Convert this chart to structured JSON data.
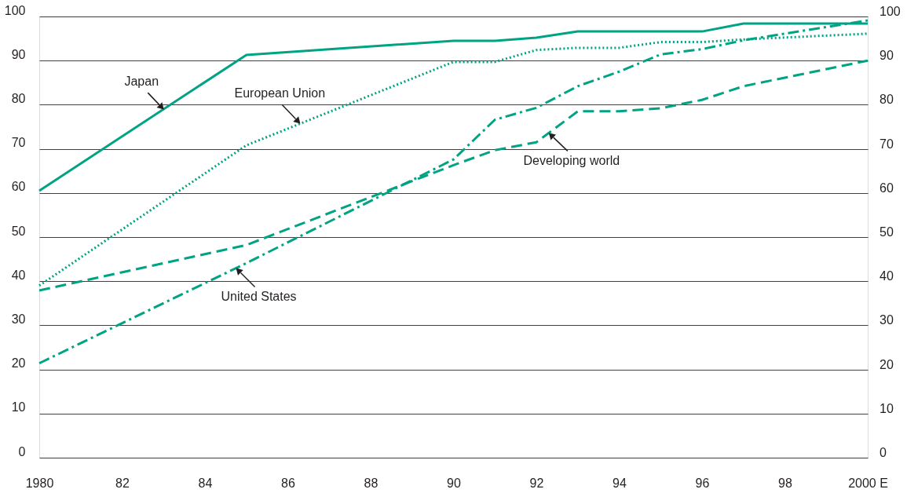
{
  "chart_data": {
    "type": "line",
    "x": [
      1980,
      1985,
      1990,
      1991,
      1992,
      1993,
      1994,
      1995,
      1996,
      1997,
      2000
    ],
    "series": [
      {
        "name": "Japan",
        "color": "#00a383",
        "line_style": "solid",
        "values": [
          60.5,
          91.3,
          94.5,
          94.5,
          95.2,
          96.6,
          96.6,
          96.6,
          96.6,
          98.4,
          98.4
        ]
      },
      {
        "name": "European Union",
        "color": "#00a383",
        "line_style": "dotted",
        "values": [
          39,
          70.8,
          89.7,
          89.7,
          92.4,
          92.9,
          92.9,
          94.2,
          94.2,
          94.8,
          96.1
        ]
      },
      {
        "name": "United States",
        "color": "#00a383",
        "line_style": "dashdot",
        "values": [
          21.4,
          44.1,
          67.6,
          76.6,
          79.3,
          84.2,
          87.5,
          91.4,
          92.6,
          94.6,
          99.1
        ]
      },
      {
        "name": "Developing world",
        "color": "#00a383",
        "line_style": "dashed",
        "values": [
          37.9,
          48.2,
          66.3,
          69.7,
          71.5,
          78.5,
          78.5,
          79.2,
          81.1,
          84.2,
          90
        ]
      }
    ],
    "xlim": [
      1980,
      2000
    ],
    "xticks": [
      {
        "value": 1980,
        "label": "1980"
      },
      {
        "value": 1982,
        "label": "82"
      },
      {
        "value": 1984,
        "label": "84"
      },
      {
        "value": 1986,
        "label": "86"
      },
      {
        "value": 1988,
        "label": "88"
      },
      {
        "value": 1990,
        "label": "90"
      },
      {
        "value": 1992,
        "label": "92"
      },
      {
        "value": 1994,
        "label": "94"
      },
      {
        "value": 1996,
        "label": "96"
      },
      {
        "value": 1998,
        "label": "98"
      },
      {
        "value": 2000,
        "label": "2000 E"
      }
    ],
    "ylim": [
      0,
      100
    ],
    "yticks": [
      0,
      10,
      20,
      30,
      40,
      50,
      60,
      70,
      80,
      90,
      100
    ],
    "y2lim": [
      0,
      100
    ],
    "y2ticks": [
      0,
      10,
      20,
      30,
      40,
      50,
      60,
      70,
      80,
      90,
      100
    ],
    "grid": "y",
    "legend": false,
    "marker": "none"
  }
}
